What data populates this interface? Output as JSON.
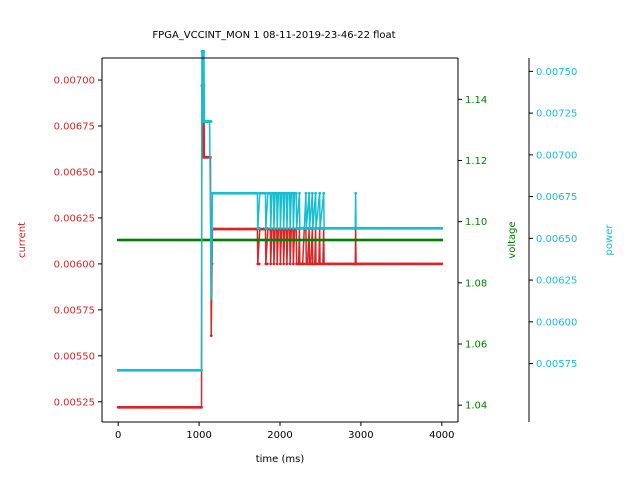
{
  "chart_data": {
    "type": "line",
    "title": "FPGA_VCCINT_MON   1   08-11-2019-23-46-22   float",
    "xlabel": "time (ms)",
    "xlim": [
      -200,
      4200
    ],
    "xticks": [
      0,
      1000,
      2000,
      3000,
      4000
    ],
    "axes": {
      "current": {
        "label": "current",
        "color": "#d62728",
        "ylim": [
          0.00514,
          0.00712
        ],
        "ticks": [
          0.00525,
          0.0055,
          0.00575,
          0.006,
          0.00625,
          0.0065,
          0.00675,
          0.007
        ],
        "tick_format": 5
      },
      "voltage": {
        "label": "voltage",
        "color": "#008000",
        "ylim": [
          1.0345,
          1.1535
        ],
        "ticks": [
          1.04,
          1.06,
          1.08,
          1.1,
          1.12,
          1.14
        ],
        "tick_format": 2
      },
      "power": {
        "label": "power",
        "color": "#17becf",
        "ylim": [
          0.0054,
          0.00758
        ],
        "ticks": [
          0.00575,
          0.006,
          0.00625,
          0.0065,
          0.00675,
          0.007,
          0.00725,
          0.0075
        ],
        "tick_format": 5
      }
    },
    "series": [
      {
        "axis": "current",
        "color": "#d62728",
        "x": [
          0,
          1030,
          1035,
          1040,
          1045,
          1050,
          1055,
          1060,
          1065,
          1070,
          1080,
          1090,
          1100,
          1110,
          1120,
          1130,
          1140,
          1150,
          1160,
          1165,
          1170,
          1175,
          1180,
          1200,
          1300,
          1400,
          1500,
          1600,
          1700,
          1720,
          1725,
          1750,
          1760,
          1800,
          1820,
          1825,
          1850,
          1860,
          1880,
          1885,
          1900,
          1920,
          1925,
          1940,
          1960,
          1965,
          1980,
          2000,
          2005,
          2020,
          2040,
          2045,
          2060,
          2080,
          2085,
          2100,
          2120,
          2125,
          2140,
          2160,
          2165,
          2180,
          2200,
          2205,
          2230,
          2240,
          2245,
          2260,
          2280,
          2300,
          2320,
          2325,
          2340,
          2360,
          2365,
          2380,
          2400,
          2405,
          2430,
          2440,
          2445,
          2480,
          2490,
          2495,
          2530,
          2540,
          2545,
          2600,
          2930,
          2935,
          2940,
          3000,
          4000
        ],
        "y": [
          0.00522,
          0.00522,
          0.00697,
          0.00697,
          0.00658,
          0.00697,
          0.00658,
          0.00697,
          0.00658,
          0.00658,
          0.00658,
          0.00658,
          0.00658,
          0.00658,
          0.00658,
          0.00658,
          0.00658,
          0.00561,
          0.006,
          0.00619,
          0.00619,
          0.00619,
          0.00619,
          0.00619,
          0.00619,
          0.00619,
          0.00619,
          0.00619,
          0.00619,
          0.00619,
          0.006,
          0.00619,
          0.00619,
          0.00619,
          0.00619,
          0.006,
          0.00619,
          0.00619,
          0.00619,
          0.006,
          0.00619,
          0.00619,
          0.006,
          0.00619,
          0.00619,
          0.006,
          0.00619,
          0.00619,
          0.006,
          0.00619,
          0.00619,
          0.006,
          0.00619,
          0.00619,
          0.006,
          0.00619,
          0.00619,
          0.006,
          0.00619,
          0.00619,
          0.006,
          0.00619,
          0.00619,
          0.006,
          0.006,
          0.00619,
          0.006,
          0.006,
          0.006,
          0.00619,
          0.00619,
          0.006,
          0.006,
          0.00619,
          0.006,
          0.006,
          0.00619,
          0.006,
          0.006,
          0.00619,
          0.006,
          0.006,
          0.00619,
          0.006,
          0.006,
          0.00619,
          0.006,
          0.006,
          0.006,
          0.00619,
          0.006,
          0.006,
          0.006
        ]
      },
      {
        "axis": "voltage",
        "color": "#008000",
        "x": [
          0,
          4000
        ],
        "y": [
          1.094,
          1.094
        ]
      },
      {
        "axis": "power",
        "color": "#17becf",
        "x": [
          0,
          1030,
          1035,
          1040,
          1045,
          1050,
          1055,
          1060,
          1065,
          1070,
          1100,
          1130,
          1150,
          1160,
          1165,
          1200,
          1720,
          1725,
          1750,
          1820,
          1825,
          1850,
          1880,
          1885,
          1900,
          1920,
          1925,
          1940,
          1960,
          1965,
          1980,
          2000,
          2005,
          2020,
          2040,
          2045,
          2060,
          2080,
          2085,
          2100,
          2120,
          2125,
          2140,
          2160,
          2165,
          2180,
          2200,
          2205,
          2240,
          2245,
          2300,
          2320,
          2325,
          2360,
          2365,
          2400,
          2405,
          2440,
          2445,
          2490,
          2495,
          2540,
          2545,
          2930,
          2935,
          2940,
          3000,
          4000
        ],
        "y": [
          0.00571,
          0.00571,
          0.00762,
          0.00762,
          0.0072,
          0.00762,
          0.0072,
          0.00762,
          0.0072,
          0.0072,
          0.0072,
          0.0072,
          0.00614,
          0.00656,
          0.00677,
          0.00677,
          0.00677,
          0.00656,
          0.00677,
          0.00677,
          0.00656,
          0.00677,
          0.00677,
          0.00656,
          0.00677,
          0.00677,
          0.00656,
          0.00677,
          0.00677,
          0.00656,
          0.00677,
          0.00677,
          0.00656,
          0.00677,
          0.00677,
          0.00656,
          0.00677,
          0.00677,
          0.00656,
          0.00677,
          0.00677,
          0.00656,
          0.00677,
          0.00677,
          0.00656,
          0.00677,
          0.00677,
          0.00656,
          0.00677,
          0.00656,
          0.00656,
          0.00677,
          0.00656,
          0.00677,
          0.00656,
          0.00677,
          0.00656,
          0.00677,
          0.00656,
          0.00677,
          0.00656,
          0.00677,
          0.00656,
          0.00656,
          0.00677,
          0.00656,
          0.00656,
          0.00656
        ]
      }
    ]
  }
}
